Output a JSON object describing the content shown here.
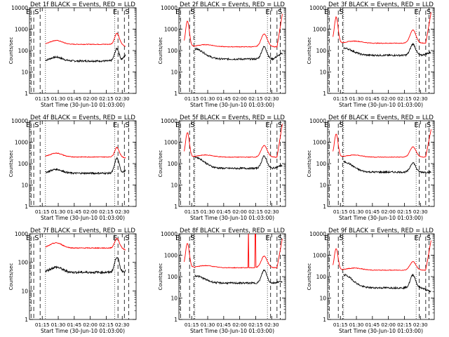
{
  "figure": {
    "ylabel": "Counts/sec",
    "xlabel": "Start Time (30-Jun-10 01:03:00)",
    "series_names": [
      "Events",
      "LLD"
    ],
    "colors": {
      "events": "#000000",
      "lld": "#ff0000"
    },
    "x_ticks": [
      "01:15",
      "01:30",
      "01:45",
      "02:00",
      "02:15",
      "02:30"
    ],
    "y_ticks": [
      "1",
      "10",
      "100",
      "1000",
      "10000"
    ]
  },
  "chart_data": [
    {
      "type": "line",
      "title": "Det 1f BLACK = Events, RED = LLD",
      "ylim": [
        1,
        10000
      ],
      "ylog": true,
      "yticks": [
        "1",
        "10",
        "100",
        "1000",
        "10000"
      ],
      "markers": [
        {
          "label": "E",
          "minute": 1.5
        },
        {
          "label": "S",
          "minute": 4.0
        },
        {
          "label": "E",
          "minute": 83
        },
        {
          "label": "S",
          "minute": 89
        }
      ],
      "series": [
        {
          "name": "Events",
          "color": "#000000",
          "profile": "A",
          "x_range": [
            15,
            90
          ],
          "values": {
            "start": 35,
            "trough": 32,
            "peak": 120,
            "end": 60
          }
        },
        {
          "name": "LLD",
          "color": "#ff0000",
          "profile": "A",
          "x_range": [
            15,
            90
          ],
          "values": {
            "start": 180,
            "trough": 200,
            "peak": 650,
            "end": 160
          }
        }
      ]
    },
    {
      "type": "line",
      "title": "Det 2f BLACK = Events, RED = LLD",
      "ylim": [
        1,
        10000
      ],
      "ylog": true,
      "yticks": [
        "1",
        "10",
        "100",
        "1000",
        "10000"
      ],
      "markers": [
        {
          "label": "E",
          "minute": 1.5
        },
        {
          "label": "S",
          "minute": 10
        },
        {
          "label": "E",
          "minute": 86
        },
        {
          "label": "S",
          "minute": 92
        }
      ],
      "series": [
        {
          "name": "Events",
          "color": "#000000",
          "profile": "B",
          "x_range": [
            15,
            97
          ],
          "values": {
            "start": 120,
            "trough": 40,
            "peak": 150,
            "end": 70
          }
        },
        {
          "name": "LLD",
          "color": "#ff0000",
          "profile": "B",
          "x_range": [
            5,
            97
          ],
          "values": {
            "start": 1500,
            "trough": 150,
            "peak": 600,
            "end": 5000
          }
        }
      ]
    },
    {
      "type": "line",
      "title": "Det 3f BLACK = Events, RED = LLD",
      "ylim": [
        1,
        10000
      ],
      "ylog": true,
      "yticks": [
        "1",
        "10",
        "100",
        "1000",
        "10000"
      ],
      "markers": [
        {
          "label": "E",
          "minute": 1.5
        },
        {
          "label": "S",
          "minute": 10
        },
        {
          "label": "E",
          "minute": 86
        },
        {
          "label": "S",
          "minute": 92
        }
      ],
      "series": [
        {
          "name": "Events",
          "color": "#000000",
          "profile": "B",
          "x_range": [
            15,
            97
          ],
          "values": {
            "start": 130,
            "trough": 60,
            "peak": 200,
            "end": 80
          }
        },
        {
          "name": "LLD",
          "color": "#ff0000",
          "profile": "B",
          "x_range": [
            5,
            97
          ],
          "values": {
            "start": 1500,
            "trough": 220,
            "peak": 900,
            "end": 6000
          }
        }
      ]
    },
    {
      "type": "line",
      "title": "Det 4f BLACK = Events, RED = LLD",
      "ylim": [
        1,
        10000
      ],
      "ylog": true,
      "yticks": [
        "1",
        "10",
        "100",
        "1000",
        "10000"
      ],
      "markers": [
        {
          "label": "E",
          "minute": 1.5
        },
        {
          "label": "S",
          "minute": 4.0
        },
        {
          "label": "E",
          "minute": 83
        },
        {
          "label": "S",
          "minute": 89
        }
      ],
      "series": [
        {
          "name": "Events",
          "color": "#000000",
          "profile": "A",
          "x_range": [
            15,
            90
          ],
          "values": {
            "start": 70,
            "trough": 30,
            "peak": 150,
            "end": 40
          }
        },
        {
          "name": "LLD",
          "color": "#ff0000",
          "profile": "A",
          "x_range": [
            15,
            90
          ],
          "values": {
            "start": 220,
            "trough": 200,
            "peak": 550,
            "end": 180
          }
        }
      ]
    },
    {
      "type": "line",
      "title": "Det 5f BLACK = Events, RED = LLD",
      "ylim": [
        1,
        10000
      ],
      "ylog": true,
      "yticks": [
        "1",
        "10",
        "100",
        "1000",
        "10000"
      ],
      "markers": [
        {
          "label": "E",
          "minute": 1.5
        },
        {
          "label": "S",
          "minute": 10
        },
        {
          "label": "E",
          "minute": 86
        },
        {
          "label": "S",
          "minute": 92
        }
      ],
      "series": [
        {
          "name": "Events",
          "color": "#000000",
          "profile": "B",
          "x_range": [
            15,
            97
          ],
          "values": {
            "start": 200,
            "trough": 60,
            "peak": 220,
            "end": 80
          }
        },
        {
          "name": "LLD",
          "color": "#ff0000",
          "profile": "B",
          "x_range": [
            5,
            97
          ],
          "values": {
            "start": 2000,
            "trough": 200,
            "peak": 700,
            "end": 7000
          }
        }
      ]
    },
    {
      "type": "line",
      "title": "Det 6f BLACK = Events, RED = LLD",
      "ylim": [
        1,
        10000
      ],
      "ylog": true,
      "yticks": [
        "1",
        "10",
        "100",
        "1000",
        "10000"
      ],
      "markers": [
        {
          "label": "E",
          "minute": 1.5
        },
        {
          "label": "S",
          "minute": 10
        },
        {
          "label": "E",
          "minute": 86
        },
        {
          "label": "S",
          "minute": 92
        }
      ],
      "series": [
        {
          "name": "Events",
          "color": "#000000",
          "profile": "B",
          "x_range": [
            15,
            97
          ],
          "values": {
            "start": 120,
            "trough": 40,
            "peak": 110,
            "end": 40
          }
        },
        {
          "name": "LLD",
          "color": "#ff0000",
          "profile": "B",
          "x_range": [
            5,
            97
          ],
          "values": {
            "start": 1000,
            "trough": 200,
            "peak": 600,
            "end": 4000
          }
        }
      ]
    },
    {
      "type": "line",
      "title": "Det 7f BLACK = Events, RED = LLD",
      "ylim": [
        1,
        1000
      ],
      "ylog": true,
      "yticks": [
        "1",
        "10",
        "100",
        "1000"
      ],
      "markers": [
        {
          "label": "E",
          "minute": 1.5
        },
        {
          "label": "S",
          "minute": 4.0
        },
        {
          "label": "E",
          "minute": 83
        },
        {
          "label": "S",
          "minute": 89
        }
      ],
      "series": [
        {
          "name": "Events",
          "color": "#000000",
          "profile": "A",
          "x_range": [
            15,
            90
          ],
          "values": {
            "start": 70,
            "trough": 40,
            "peak": 140,
            "end": 45
          }
        },
        {
          "name": "LLD",
          "color": "#ff0000",
          "profile": "A",
          "x_range": [
            15,
            90
          ],
          "values": {
            "start": 400,
            "trough": 300,
            "peak": 650,
            "end": 260
          }
        }
      ]
    },
    {
      "type": "line",
      "title": "Det 8f BLACK = Events, RED = LLD",
      "ylim": [
        1,
        10000
      ],
      "ylog": true,
      "yticks": [
        "1",
        "10",
        "100",
        "1000",
        "10000"
      ],
      "markers": [
        {
          "label": "E",
          "minute": 1.5
        },
        {
          "label": "S",
          "minute": 10
        },
        {
          "label": "E",
          "minute": 86
        },
        {
          "label": "S",
          "minute": 92
        }
      ],
      "series": [
        {
          "name": "Events",
          "color": "#000000",
          "profile": "B",
          "x_range": [
            15,
            97
          ],
          "values": {
            "start": 110,
            "trough": 50,
            "peak": 200,
            "end": 60
          }
        },
        {
          "name": "LLD",
          "color": "#ff0000",
          "profile": "B",
          "x_range": [
            5,
            97
          ],
          "values": {
            "start": 1500,
            "trough": 260,
            "peak": 900,
            "end": 6000,
            "spike_start": 65,
            "spike_end": 72
          }
        }
      ]
    },
    {
      "type": "line",
      "title": "Det 9f BLACK = Events, RED = LLD",
      "ylim": [
        1,
        10000
      ],
      "ylog": true,
      "yticks": [
        "1",
        "10",
        "100",
        "1000",
        "10000"
      ],
      "markers": [
        {
          "label": "E",
          "minute": 1.5
        },
        {
          "label": "S",
          "minute": 10
        },
        {
          "label": "E",
          "minute": 86
        },
        {
          "label": "S",
          "minute": 92
        }
      ],
      "series": [
        {
          "name": "Events",
          "color": "#000000",
          "profile": "B",
          "x_range": [
            15,
            97
          ],
          "values": {
            "start": 120,
            "trough": 30,
            "peak": 120,
            "end": 20
          }
        },
        {
          "name": "LLD",
          "color": "#ff0000",
          "profile": "B",
          "x_range": [
            5,
            97
          ],
          "values": {
            "start": 1200,
            "trough": 200,
            "peak": 500,
            "end": 5000
          }
        }
      ]
    }
  ]
}
